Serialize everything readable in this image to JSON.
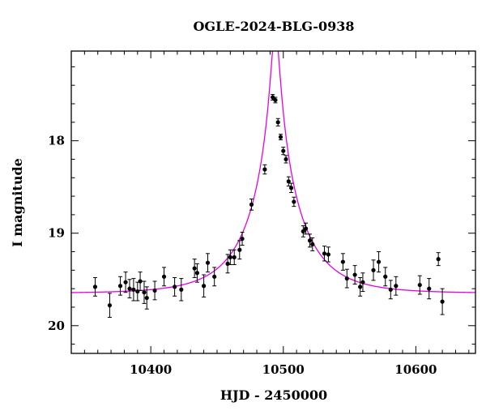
{
  "chart_data": {
    "type": "scatter",
    "title": "OGLE-2024-BLG-0938",
    "xlabel": "HJD - 2450000",
    "ylabel": "I magnitude",
    "xlim": [
      10340,
      10645
    ],
    "ylim": [
      20.3,
      17.03
    ],
    "y_inverted": true,
    "x_ticks": [
      10400,
      10500,
      10600
    ],
    "y_ticks": [
      18,
      19,
      20
    ],
    "x_minor_step": 10,
    "y_minor_step": 0.2,
    "colors": {
      "points": "#000000",
      "model": "#e600e6",
      "frame": "#000000"
    },
    "series": [
      {
        "name": "data",
        "points": [
          [
            10358,
            19.58,
            0.1
          ],
          [
            10369,
            19.78,
            0.13
          ],
          [
            10377,
            19.57,
            0.1
          ],
          [
            10381,
            19.53,
            0.11
          ],
          [
            10384,
            19.6,
            0.1
          ],
          [
            10387,
            19.61,
            0.12
          ],
          [
            10390,
            19.63,
            0.1
          ],
          [
            10392,
            19.52,
            0.1
          ],
          [
            10395,
            19.64,
            0.12
          ],
          [
            10397,
            19.7,
            0.12
          ],
          [
            10403,
            19.62,
            0.1
          ],
          [
            10410,
            19.47,
            0.1
          ],
          [
            10418,
            19.58,
            0.1
          ],
          [
            10423,
            19.61,
            0.12
          ],
          [
            10433,
            19.38,
            0.1
          ],
          [
            10435,
            19.43,
            0.1
          ],
          [
            10440,
            19.57,
            0.12
          ],
          [
            10443,
            19.32,
            0.1
          ],
          [
            10448,
            19.47,
            0.1
          ],
          [
            10458,
            19.33,
            0.1
          ],
          [
            10460,
            19.26,
            0.08
          ],
          [
            10463,
            19.26,
            0.08
          ],
          [
            10467,
            19.18,
            0.1
          ],
          [
            10469,
            19.06,
            0.07
          ],
          [
            10476,
            18.69,
            0.06
          ],
          [
            10486,
            18.31,
            0.05
          ],
          [
            10492,
            17.53,
            0.03
          ],
          [
            10494,
            17.56,
            0.03
          ],
          [
            10496,
            17.8,
            0.04
          ],
          [
            10498,
            17.96,
            0.03
          ],
          [
            10500,
            18.11,
            0.04
          ],
          [
            10502,
            18.2,
            0.04
          ],
          [
            10504,
            18.44,
            0.05
          ],
          [
            10506,
            18.51,
            0.05
          ],
          [
            10508,
            18.66,
            0.05
          ],
          [
            10515,
            18.98,
            0.06
          ],
          [
            10517,
            18.95,
            0.06
          ],
          [
            10520,
            19.08,
            0.07
          ],
          [
            10522,
            19.12,
            0.07
          ],
          [
            10531,
            19.22,
            0.08
          ],
          [
            10534,
            19.23,
            0.08
          ],
          [
            10545,
            19.31,
            0.09
          ],
          [
            10548,
            19.49,
            0.1
          ],
          [
            10554,
            19.45,
            0.1
          ],
          [
            10558,
            19.58,
            0.1
          ],
          [
            10560,
            19.53,
            0.1
          ],
          [
            10568,
            19.4,
            0.11
          ],
          [
            10572,
            19.31,
            0.11
          ],
          [
            10577,
            19.47,
            0.1
          ],
          [
            10581,
            19.61,
            0.1
          ],
          [
            10585,
            19.57,
            0.1
          ],
          [
            10603,
            19.56,
            0.1
          ],
          [
            10610,
            19.6,
            0.11
          ],
          [
            10617,
            19.28,
            0.07
          ],
          [
            10620,
            19.74,
            0.14
          ]
        ]
      },
      {
        "name": "model",
        "type": "line",
        "function": "paczynski",
        "t0": 10494,
        "tE": 40,
        "u0": 0.072,
        "i_base": 19.65
      }
    ]
  }
}
